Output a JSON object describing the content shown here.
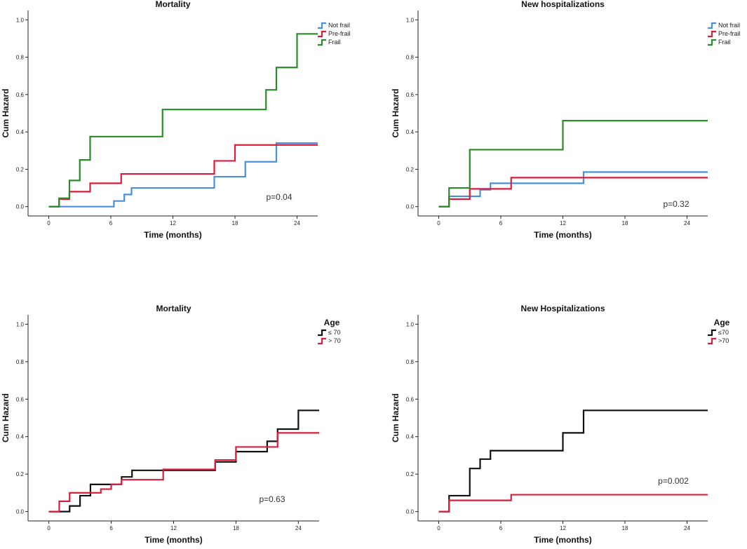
{
  "chart_data": [
    {
      "type": "line",
      "title": "Mortality",
      "xlabel": "Time (months)",
      "ylabel": "Cum Hazard",
      "xlim": [
        -2,
        26
      ],
      "ylim": [
        -0.05,
        1.05
      ],
      "xticks": [
        "0",
        "6",
        "12",
        "18",
        "24"
      ],
      "yticks": [
        "0.0",
        "0.2",
        "0.4",
        "0.6",
        "0.8",
        "1.0"
      ],
      "legend": {
        "title": "",
        "position": "top-right"
      },
      "annotation": "p=0.04",
      "series": [
        {
          "name": "Not frail",
          "color": "#4a90d9",
          "x": [
            0,
            6,
            6.3,
            7,
            7.3,
            8,
            16,
            19,
            22,
            26
          ],
          "y": [
            0,
            0,
            0.03,
            0.03,
            0.065,
            0.1,
            0.16,
            0.24,
            0.34,
            0.34
          ]
        },
        {
          "name": "Pre-frail",
          "color": "#d81e3c",
          "x": [
            0,
            1,
            2,
            4,
            7,
            16,
            18,
            26
          ],
          "y": [
            0,
            0.04,
            0.08,
            0.125,
            0.175,
            0.245,
            0.33,
            0.33
          ]
        },
        {
          "name": "Frail",
          "color": "#2a8a2a",
          "x": [
            0,
            1,
            2,
            3,
            4,
            11,
            21,
            22,
            24,
            26
          ],
          "y": [
            0,
            0.045,
            0.14,
            0.25,
            0.375,
            0.52,
            0.625,
            0.745,
            0.925,
            0.925
          ]
        }
      ]
    },
    {
      "type": "line",
      "title": "New hospitalizations",
      "xlabel": "Time (months)",
      "ylabel": "Cum Hazard",
      "xlim": [
        -2,
        26
      ],
      "ylim": [
        -0.05,
        1.05
      ],
      "xticks": [
        "0",
        "6",
        "12",
        "18",
        "24"
      ],
      "yticks": [
        "0.0",
        "0.2",
        "0.4",
        "0.6",
        "0.8",
        "1.0"
      ],
      "legend": {
        "title": "",
        "position": "top-right"
      },
      "annotation": "p=0.32",
      "series": [
        {
          "name": "Not frail",
          "color": "#4a90d9",
          "x": [
            0,
            1,
            4,
            5,
            14,
            26
          ],
          "y": [
            0,
            0.055,
            0.09,
            0.125,
            0.185,
            0.185
          ]
        },
        {
          "name": "Pre-frail",
          "color": "#d81e3c",
          "x": [
            0,
            1,
            3,
            7,
            26
          ],
          "y": [
            0,
            0.04,
            0.095,
            0.155,
            0.155
          ]
        },
        {
          "name": "Frail",
          "color": "#2a8a2a",
          "x": [
            0,
            1,
            3,
            12,
            26
          ],
          "y": [
            0,
            0.1,
            0.305,
            0.46,
            0.46
          ]
        }
      ]
    },
    {
      "type": "line",
      "title": "Mortality",
      "xlabel": "Time (months)",
      "ylabel": "Cum Hazard",
      "xlim": [
        -2,
        26
      ],
      "ylim": [
        -0.05,
        1.05
      ],
      "xticks": [
        "0",
        "6",
        "12",
        "18",
        "24"
      ],
      "yticks": [
        "0.0",
        "0.2",
        "0.4",
        "0.6",
        "0.8",
        "1.0"
      ],
      "legend": {
        "title": "Age",
        "position": "top-right"
      },
      "annotation": "p=0.63",
      "series": [
        {
          "name": "≤ 70",
          "color": "#111111",
          "x": [
            0,
            2,
            3,
            4,
            7,
            8,
            16,
            18,
            21,
            22,
            24,
            26
          ],
          "y": [
            0,
            0.03,
            0.085,
            0.145,
            0.185,
            0.22,
            0.265,
            0.32,
            0.375,
            0.44,
            0.54,
            0.54
          ]
        },
        {
          "name": "> 70",
          "color": "#d81e3c",
          "x": [
            0,
            1,
            2,
            5,
            6,
            7,
            11,
            16,
            18,
            19,
            22,
            26
          ],
          "y": [
            0,
            0.055,
            0.1,
            0.12,
            0.145,
            0.17,
            0.225,
            0.275,
            0.345,
            0.345,
            0.42,
            0.42
          ]
        }
      ]
    },
    {
      "type": "line",
      "title": "New Hospitalizations",
      "xlabel": "Time (months)",
      "ylabel": "Cum Hazard",
      "xlim": [
        -2,
        26
      ],
      "ylim": [
        -0.05,
        1.05
      ],
      "xticks": [
        "0",
        "6",
        "12",
        "18",
        "24"
      ],
      "yticks": [
        "0.0",
        "0.2",
        "0.4",
        "0.6",
        "0.8",
        "1.0"
      ],
      "legend": {
        "title": "Age",
        "position": "top-right"
      },
      "annotation": "p=0.002",
      "series": [
        {
          "name": "≤70",
          "color": "#111111",
          "x": [
            0,
            1,
            3,
            4,
            5,
            12,
            14,
            26
          ],
          "y": [
            0,
            0.085,
            0.23,
            0.28,
            0.325,
            0.42,
            0.54,
            0.54
          ]
        },
        {
          "name": ">70",
          "color": "#d81e3c",
          "x": [
            0,
            1,
            7,
            26
          ],
          "y": [
            0,
            0.06,
            0.09,
            0.09
          ]
        }
      ]
    }
  ]
}
